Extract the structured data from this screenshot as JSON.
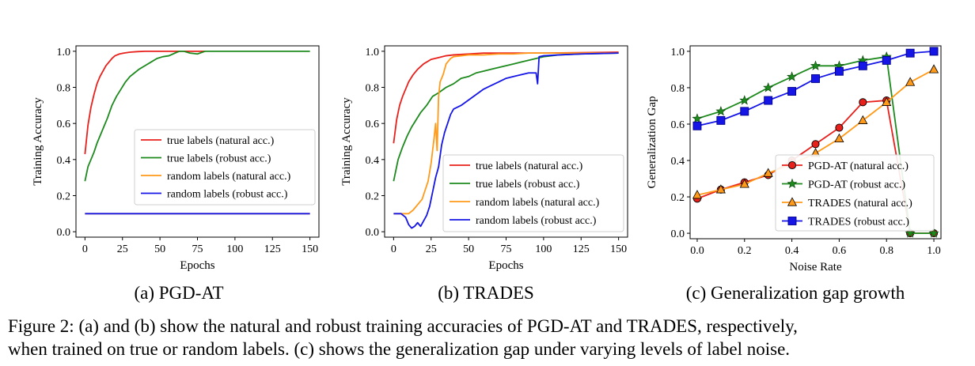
{
  "colors": {
    "red": "#e8201b",
    "green": "#1d8a1d",
    "orange": "#ff9a1a",
    "blue": "#1515e6",
    "axis": "#000000"
  },
  "caption": {
    "line1": "Figure 2: (a) and (b) show the natural and robust training accuracies of PGD-AT and TRADES, respectively,",
    "line2": "when trained on true or random labels. (c) shows the generalization gap under varying levels of label noise."
  },
  "chart_data": [
    {
      "id": "a",
      "type": "line",
      "subtitle": "(a) PGD-AT",
      "title": "",
      "xlabel": "Epochs",
      "ylabel": "Training Accuracy",
      "xlim": [
        -6,
        156
      ],
      "ylim": [
        -0.03,
        1.03
      ],
      "xticks": [
        0,
        25,
        50,
        75,
        100,
        125,
        150
      ],
      "yticks": [
        0.0,
        0.2,
        0.4,
        0.6,
        0.8,
        1.0
      ],
      "ytick_labels": [
        "0.0",
        "0.2",
        "0.4",
        "0.6",
        "0.8",
        "1.0"
      ],
      "legend_position": "center-right",
      "series": [
        {
          "name": "true labels (natural acc.)",
          "color_key": "red",
          "x": [
            0,
            2,
            4,
            6,
            8,
            10,
            12,
            14,
            16,
            18,
            20,
            23,
            26,
            30,
            35,
            40,
            50,
            60,
            70,
            80
          ],
          "y": [
            0.43,
            0.59,
            0.69,
            0.76,
            0.82,
            0.86,
            0.89,
            0.92,
            0.94,
            0.96,
            0.975,
            0.985,
            0.99,
            0.995,
            0.998,
            1.0,
            1.0,
            1.0,
            1.0,
            1.0
          ]
        },
        {
          "name": "true labels (robust acc.)",
          "color_key": "green",
          "x": [
            0,
            2,
            4,
            6,
            8,
            10,
            12,
            15,
            18,
            21,
            24,
            27,
            30,
            33,
            36,
            40,
            44,
            48,
            52,
            56,
            60,
            63,
            66,
            70,
            75,
            80,
            90,
            100,
            110,
            120,
            130,
            140,
            150
          ],
          "y": [
            0.28,
            0.36,
            0.4,
            0.44,
            0.49,
            0.53,
            0.57,
            0.63,
            0.7,
            0.75,
            0.79,
            0.83,
            0.86,
            0.88,
            0.9,
            0.92,
            0.94,
            0.96,
            0.97,
            0.975,
            0.99,
            1.0,
            1.0,
            0.99,
            0.985,
            1.0,
            1.0,
            1.0,
            1.0,
            1.0,
            1.0,
            1.0,
            1.0
          ]
        },
        {
          "name": "random labels (natural acc.)",
          "color_key": "orange",
          "x": [
            0,
            150
          ],
          "y": [
            0.1,
            0.1
          ]
        },
        {
          "name": "random labels (robust acc.)",
          "color_key": "blue",
          "x": [
            0,
            10,
            20,
            30,
            40,
            50,
            60,
            70,
            80,
            90,
            100,
            110,
            120,
            130,
            140,
            150
          ],
          "y": [
            0.1,
            0.1,
            0.1,
            0.1,
            0.1,
            0.1,
            0.1,
            0.1,
            0.1,
            0.1,
            0.1,
            0.1,
            0.1,
            0.1,
            0.1,
            0.1
          ]
        }
      ]
    },
    {
      "id": "b",
      "type": "line",
      "subtitle": "(b) TRADES",
      "title": "",
      "xlabel": "Epochs",
      "ylabel": "Training Accuracy",
      "xlim": [
        -6,
        156
      ],
      "ylim": [
        -0.03,
        1.03
      ],
      "xticks": [
        0,
        25,
        50,
        75,
        100,
        125,
        150
      ],
      "yticks": [
        0.0,
        0.2,
        0.4,
        0.6,
        0.8,
        1.0
      ],
      "ytick_labels": [
        "0.0",
        "0.2",
        "0.4",
        "0.6",
        "0.8",
        "1.0"
      ],
      "legend_position": "lower-right",
      "series": [
        {
          "name": "true labels (natural acc.)",
          "color_key": "red",
          "x": [
            0,
            2,
            4,
            6,
            8,
            10,
            13,
            16,
            20,
            25,
            30,
            35,
            40,
            50,
            60,
            80,
            100,
            150
          ],
          "y": [
            0.49,
            0.62,
            0.7,
            0.75,
            0.79,
            0.83,
            0.87,
            0.9,
            0.93,
            0.955,
            0.965,
            0.975,
            0.98,
            0.985,
            0.99,
            0.99,
            0.99,
            0.995
          ]
        },
        {
          "name": "true labels (robust acc.)",
          "color_key": "green",
          "x": [
            0,
            3,
            6,
            9,
            12,
            15,
            18,
            22,
            26,
            30,
            35,
            40,
            45,
            50,
            55,
            60,
            65,
            70,
            75,
            80,
            85,
            90,
            95,
            100,
            110,
            125,
            150
          ],
          "y": [
            0.28,
            0.4,
            0.47,
            0.53,
            0.58,
            0.62,
            0.66,
            0.7,
            0.75,
            0.77,
            0.8,
            0.82,
            0.85,
            0.86,
            0.88,
            0.89,
            0.9,
            0.91,
            0.92,
            0.93,
            0.94,
            0.95,
            0.96,
            0.97,
            0.98,
            0.985,
            0.99
          ]
        },
        {
          "name": "random labels (natural acc.)",
          "color_key": "orange",
          "x": [
            0,
            5,
            10,
            13,
            16,
            19,
            21,
            23,
            25,
            26,
            27,
            28,
            29,
            30,
            31,
            32,
            33,
            34,
            35,
            36,
            38,
            40,
            45,
            50,
            60,
            70,
            80,
            90,
            100,
            110,
            120,
            130,
            140,
            150
          ],
          "y": [
            0.1,
            0.1,
            0.1,
            0.12,
            0.15,
            0.18,
            0.23,
            0.28,
            0.38,
            0.45,
            0.52,
            0.6,
            0.45,
            0.75,
            0.83,
            0.85,
            0.87,
            0.9,
            0.93,
            0.94,
            0.96,
            0.97,
            0.975,
            0.98,
            0.98,
            0.985,
            0.985,
            0.99,
            0.99,
            0.99,
            0.99,
            0.99,
            0.99,
            0.99
          ]
        },
        {
          "name": "random labels (robust acc.)",
          "color_key": "blue",
          "x": [
            0,
            5,
            8,
            10,
            12,
            14,
            16,
            18,
            20,
            22,
            24,
            26,
            28,
            30,
            32,
            34,
            36,
            38,
            40,
            45,
            50,
            55,
            60,
            65,
            70,
            75,
            80,
            85,
            90,
            95,
            96,
            97,
            100,
            110,
            125,
            150
          ],
          "y": [
            0.1,
            0.1,
            0.08,
            0.04,
            0.02,
            0.03,
            0.05,
            0.03,
            0.06,
            0.09,
            0.14,
            0.22,
            0.3,
            0.36,
            0.48,
            0.55,
            0.6,
            0.65,
            0.68,
            0.7,
            0.73,
            0.76,
            0.79,
            0.81,
            0.83,
            0.85,
            0.86,
            0.87,
            0.88,
            0.88,
            0.82,
            0.97,
            0.975,
            0.98,
            0.985,
            0.99
          ]
        }
      ]
    },
    {
      "id": "c",
      "type": "line",
      "subtitle": "(c) Generalization gap growth",
      "title": "",
      "xlabel": "Noise Rate",
      "ylabel": "Generalization Gap",
      "xlim": [
        -0.03,
        1.03
      ],
      "ylim": [
        -0.03,
        1.03
      ],
      "xticks": [
        0.0,
        0.2,
        0.4,
        0.6,
        0.8,
        1.0
      ],
      "yticks": [
        0.0,
        0.2,
        0.4,
        0.6,
        0.8,
        1.0
      ],
      "xtick_labels": [
        "0.0",
        "0.2",
        "0.4",
        "0.6",
        "0.8",
        "1.0"
      ],
      "ytick_labels": [
        "0.0",
        "0.2",
        "0.4",
        "0.6",
        "0.8",
        "1.0"
      ],
      "legend_position": "lower-right",
      "series": [
        {
          "name": "PGD-AT (natural acc.)",
          "color_key": "red",
          "marker": "circle",
          "x": [
            0.0,
            0.1,
            0.2,
            0.3,
            0.4,
            0.5,
            0.6,
            0.7,
            0.8,
            0.9,
            1.0
          ],
          "y": [
            0.19,
            0.24,
            0.28,
            0.32,
            0.4,
            0.49,
            0.58,
            0.72,
            0.73,
            0.0,
            0.0
          ]
        },
        {
          "name": "PGD-AT (robust acc.)",
          "color_key": "green",
          "marker": "star",
          "x": [
            0.0,
            0.1,
            0.2,
            0.3,
            0.4,
            0.5,
            0.6,
            0.7,
            0.8,
            0.9,
            1.0
          ],
          "y": [
            0.63,
            0.67,
            0.73,
            0.8,
            0.86,
            0.92,
            0.92,
            0.95,
            0.97,
            0.0,
            0.0
          ]
        },
        {
          "name": "TRADES (natural acc.)",
          "color_key": "orange",
          "marker": "triangle",
          "x": [
            0.0,
            0.1,
            0.2,
            0.3,
            0.4,
            0.5,
            0.6,
            0.7,
            0.8,
            0.9,
            1.0
          ],
          "y": [
            0.21,
            0.24,
            0.27,
            0.33,
            0.38,
            0.44,
            0.52,
            0.62,
            0.72,
            0.83,
            0.9
          ]
        },
        {
          "name": "TRADES (robust acc.)",
          "color_key": "blue",
          "marker": "square",
          "x": [
            0.0,
            0.1,
            0.2,
            0.3,
            0.4,
            0.5,
            0.6,
            0.7,
            0.8,
            0.9,
            1.0
          ],
          "y": [
            0.59,
            0.62,
            0.67,
            0.73,
            0.78,
            0.85,
            0.89,
            0.92,
            0.95,
            0.99,
            1.0
          ]
        }
      ]
    }
  ]
}
